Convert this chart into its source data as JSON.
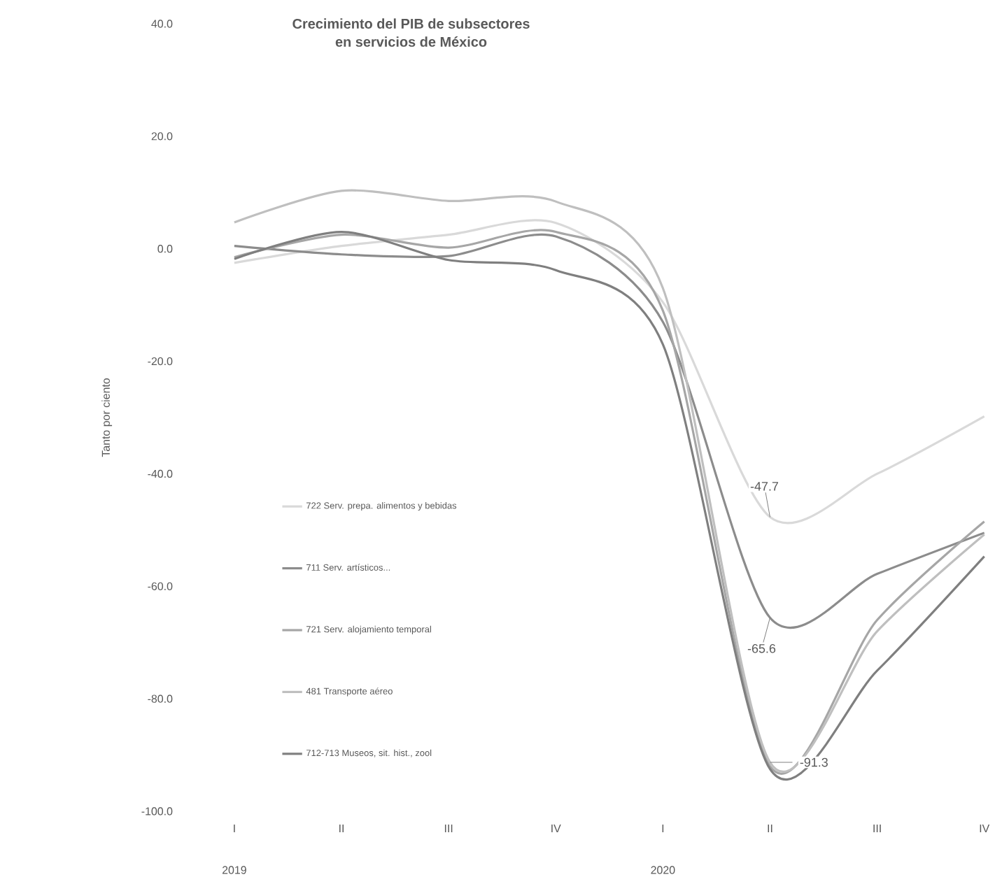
{
  "chart_data": {
    "type": "line",
    "title": "Crecimiento del PIB de subsectores\nen servicios de México",
    "ylabel": "Tanto por ciento",
    "categories": [
      "I",
      "II",
      "III",
      "IV",
      "I",
      "II",
      "III",
      "IV"
    ],
    "annotations": [
      "2019",
      "2020"
    ],
    "ylim": [
      -100,
      40
    ],
    "yticks": [
      {
        "value": -100,
        "label": "-100.0"
      },
      {
        "value": -80,
        "label": "-80.0"
      },
      {
        "value": -60,
        "label": "-60.0"
      },
      {
        "value": -40,
        "label": "-40.0"
      },
      {
        "value": -20,
        "label": "-20.0"
      },
      {
        "value": 0,
        "label": "0.0"
      },
      {
        "value": 20,
        "label": "20.0"
      },
      {
        "value": 40,
        "label": "40.0"
      }
    ],
    "legend": "left",
    "marker": "none",
    "line_style": "solid",
    "series": [
      {
        "name": "722 Serv. prepa. alimentos y bebidas",
        "color": "#d9d9d9",
        "values": [
          -2.5,
          0.5,
          2.5,
          4.6,
          -9.5,
          -47.7,
          -40,
          -29.8
        ],
        "value_labels": [
          null,
          null,
          null,
          null,
          null,
          "-47.7",
          null,
          null
        ]
      },
      {
        "name": "711 Serv. artísticos...",
        "color": "#8c8c8c",
        "values": [
          0.5,
          -1,
          -1.3,
          2.2,
          -13,
          -65.6,
          -57.8,
          -50.5
        ],
        "value_labels": [
          null,
          null,
          null,
          null,
          null,
          "-65.6",
          null,
          null
        ]
      },
      {
        "name": "721 Serv. alojamiento temporal",
        "color": "#a6a6a6",
        "values": [
          -1.5,
          2.5,
          0.2,
          3,
          -11,
          -92,
          -66,
          -48.5
        ]
      },
      {
        "name": "481 Transporte aéreo",
        "color": "#bfbfbf",
        "values": [
          4.7,
          10.3,
          8.5,
          8.4,
          -7,
          -91.3,
          -68,
          -50.8
        ],
        "value_labels": [
          null,
          null,
          null,
          null,
          null,
          "-91.3",
          null,
          null
        ]
      },
      {
        "name": "712-713 Museos, sit. hist., zool",
        "color": "#7f7f7f",
        "values": [
          -1.8,
          3,
          -2,
          -3.8,
          -17,
          -92.5,
          -75,
          -54.7
        ]
      }
    ]
  }
}
